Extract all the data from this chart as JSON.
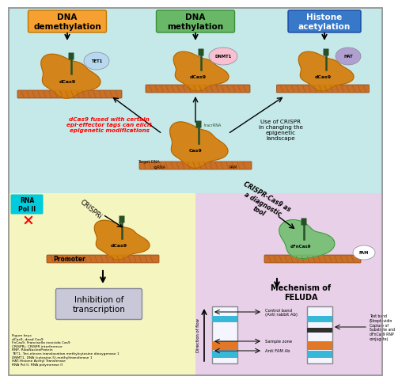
{
  "bg_top": "#c5e8e8",
  "bg_bottom_left": "#f5f5c0",
  "bg_bottom_right": "#e8d0e8",
  "labels": {
    "dna_demethylation": "DNA\ndemethylation",
    "dna_methylation": "DNA\nmethylation",
    "histone_acetylation": "Histone\nacetylation",
    "red_text": "dCas9 fused with certain\nepi-effector tags can elicit\nepigenetic modifications",
    "black_text": "Use of CRISPR\nin changing the\nepigenetic\nlandscape",
    "rna_pol": "RNA\nPol II",
    "crispri": "CRISPRi",
    "promoter": "Promoter",
    "inhibition": "Inhibition of\ntranscription",
    "cas9_diag": "CRISPR-Cas9 as\na diagnostic\ntool",
    "fam": "FAM",
    "feluda_title": "Mechenism of\nFELUDA",
    "control_band": "Control band\n(Anti rabbit Ab)",
    "sample_zone": "Sample zone",
    "anti_fam": "Anti FAM Ab",
    "test_band": "Test band\n(Streptavidin\nCapture of\nSubstrate and\ndFnCas9 RNP\nconjugate)",
    "direction_flow": "Direction of flow",
    "figure_keys": "Figure keys\ndCas9- dead Cas9\nFnCas9- Francisella novicida Cas9\nCRISPRi- CRISPR interference\nRNP- RiboNucleoProtein\nTET1- Ten-eleven translocation methylcytosine dioxygenase 1\nDNMT1- DNA (cytosine-5)-methyltransferase 1\nHAT-Histone Acetyl Transferase\nRNA Pol II- RNA polymerase II"
  }
}
